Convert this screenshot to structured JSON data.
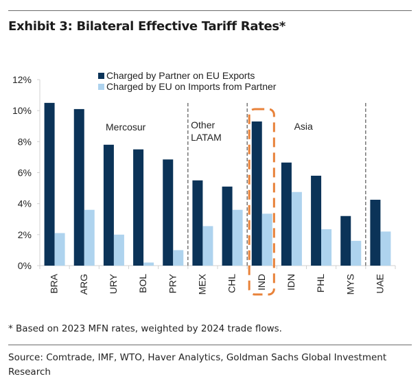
{
  "header": {
    "title": "Exhibit 3: Bilateral Effective Tariff Rates*"
  },
  "footer": {
    "footnote": "* Based on 2023 MFN rates, weighted by 2024 trade flows.",
    "source": "Source: Comtrade, IMF, WTO, Haver Analytics, Goldman Sachs Global Investment Research"
  },
  "colors": {
    "partner": "#0b3358",
    "eu": "#aed3ee",
    "highlight": "#e8823a",
    "axis": "#d0d0d0",
    "divider": "#555555"
  },
  "chart_data": {
    "type": "bar",
    "title": "Exhibit 3: Bilateral Effective Tariff Rates*",
    "xlabel": "",
    "ylabel": "",
    "ylim": [
      0,
      12
    ],
    "yticks": [
      0,
      2,
      4,
      6,
      8,
      10,
      12
    ],
    "ytick_labels": [
      "0%",
      "2%",
      "4%",
      "6%",
      "8%",
      "10%",
      "12%"
    ],
    "grid": false,
    "legend_position": "top-center",
    "categories": [
      "BRA",
      "ARG",
      "URY",
      "BOL",
      "PRY",
      "MEX",
      "CHL",
      "IND",
      "IDN",
      "PHL",
      "MYS",
      "UAE"
    ],
    "series": [
      {
        "name": "Charged by Partner on EU Exports",
        "values": [
          10.5,
          10.1,
          7.8,
          7.5,
          6.85,
          5.5,
          5.1,
          9.3,
          6.65,
          5.8,
          3.2,
          4.25
        ]
      },
      {
        "name": "Charged by EU on Imports from Partner",
        "values": [
          2.1,
          3.6,
          2.0,
          0.2,
          1.0,
          2.55,
          3.6,
          3.35,
          4.75,
          2.35,
          1.6,
          2.2
        ]
      }
    ],
    "groups": [
      {
        "label": "Mercosur",
        "start": 0,
        "end": 4
      },
      {
        "label": "Other LATAM",
        "start": 5,
        "end": 6
      },
      {
        "label": "Asia",
        "start": 7,
        "end": 10
      },
      {
        "label": "",
        "start": 11,
        "end": 11
      }
    ],
    "highlight_category": "IND"
  }
}
